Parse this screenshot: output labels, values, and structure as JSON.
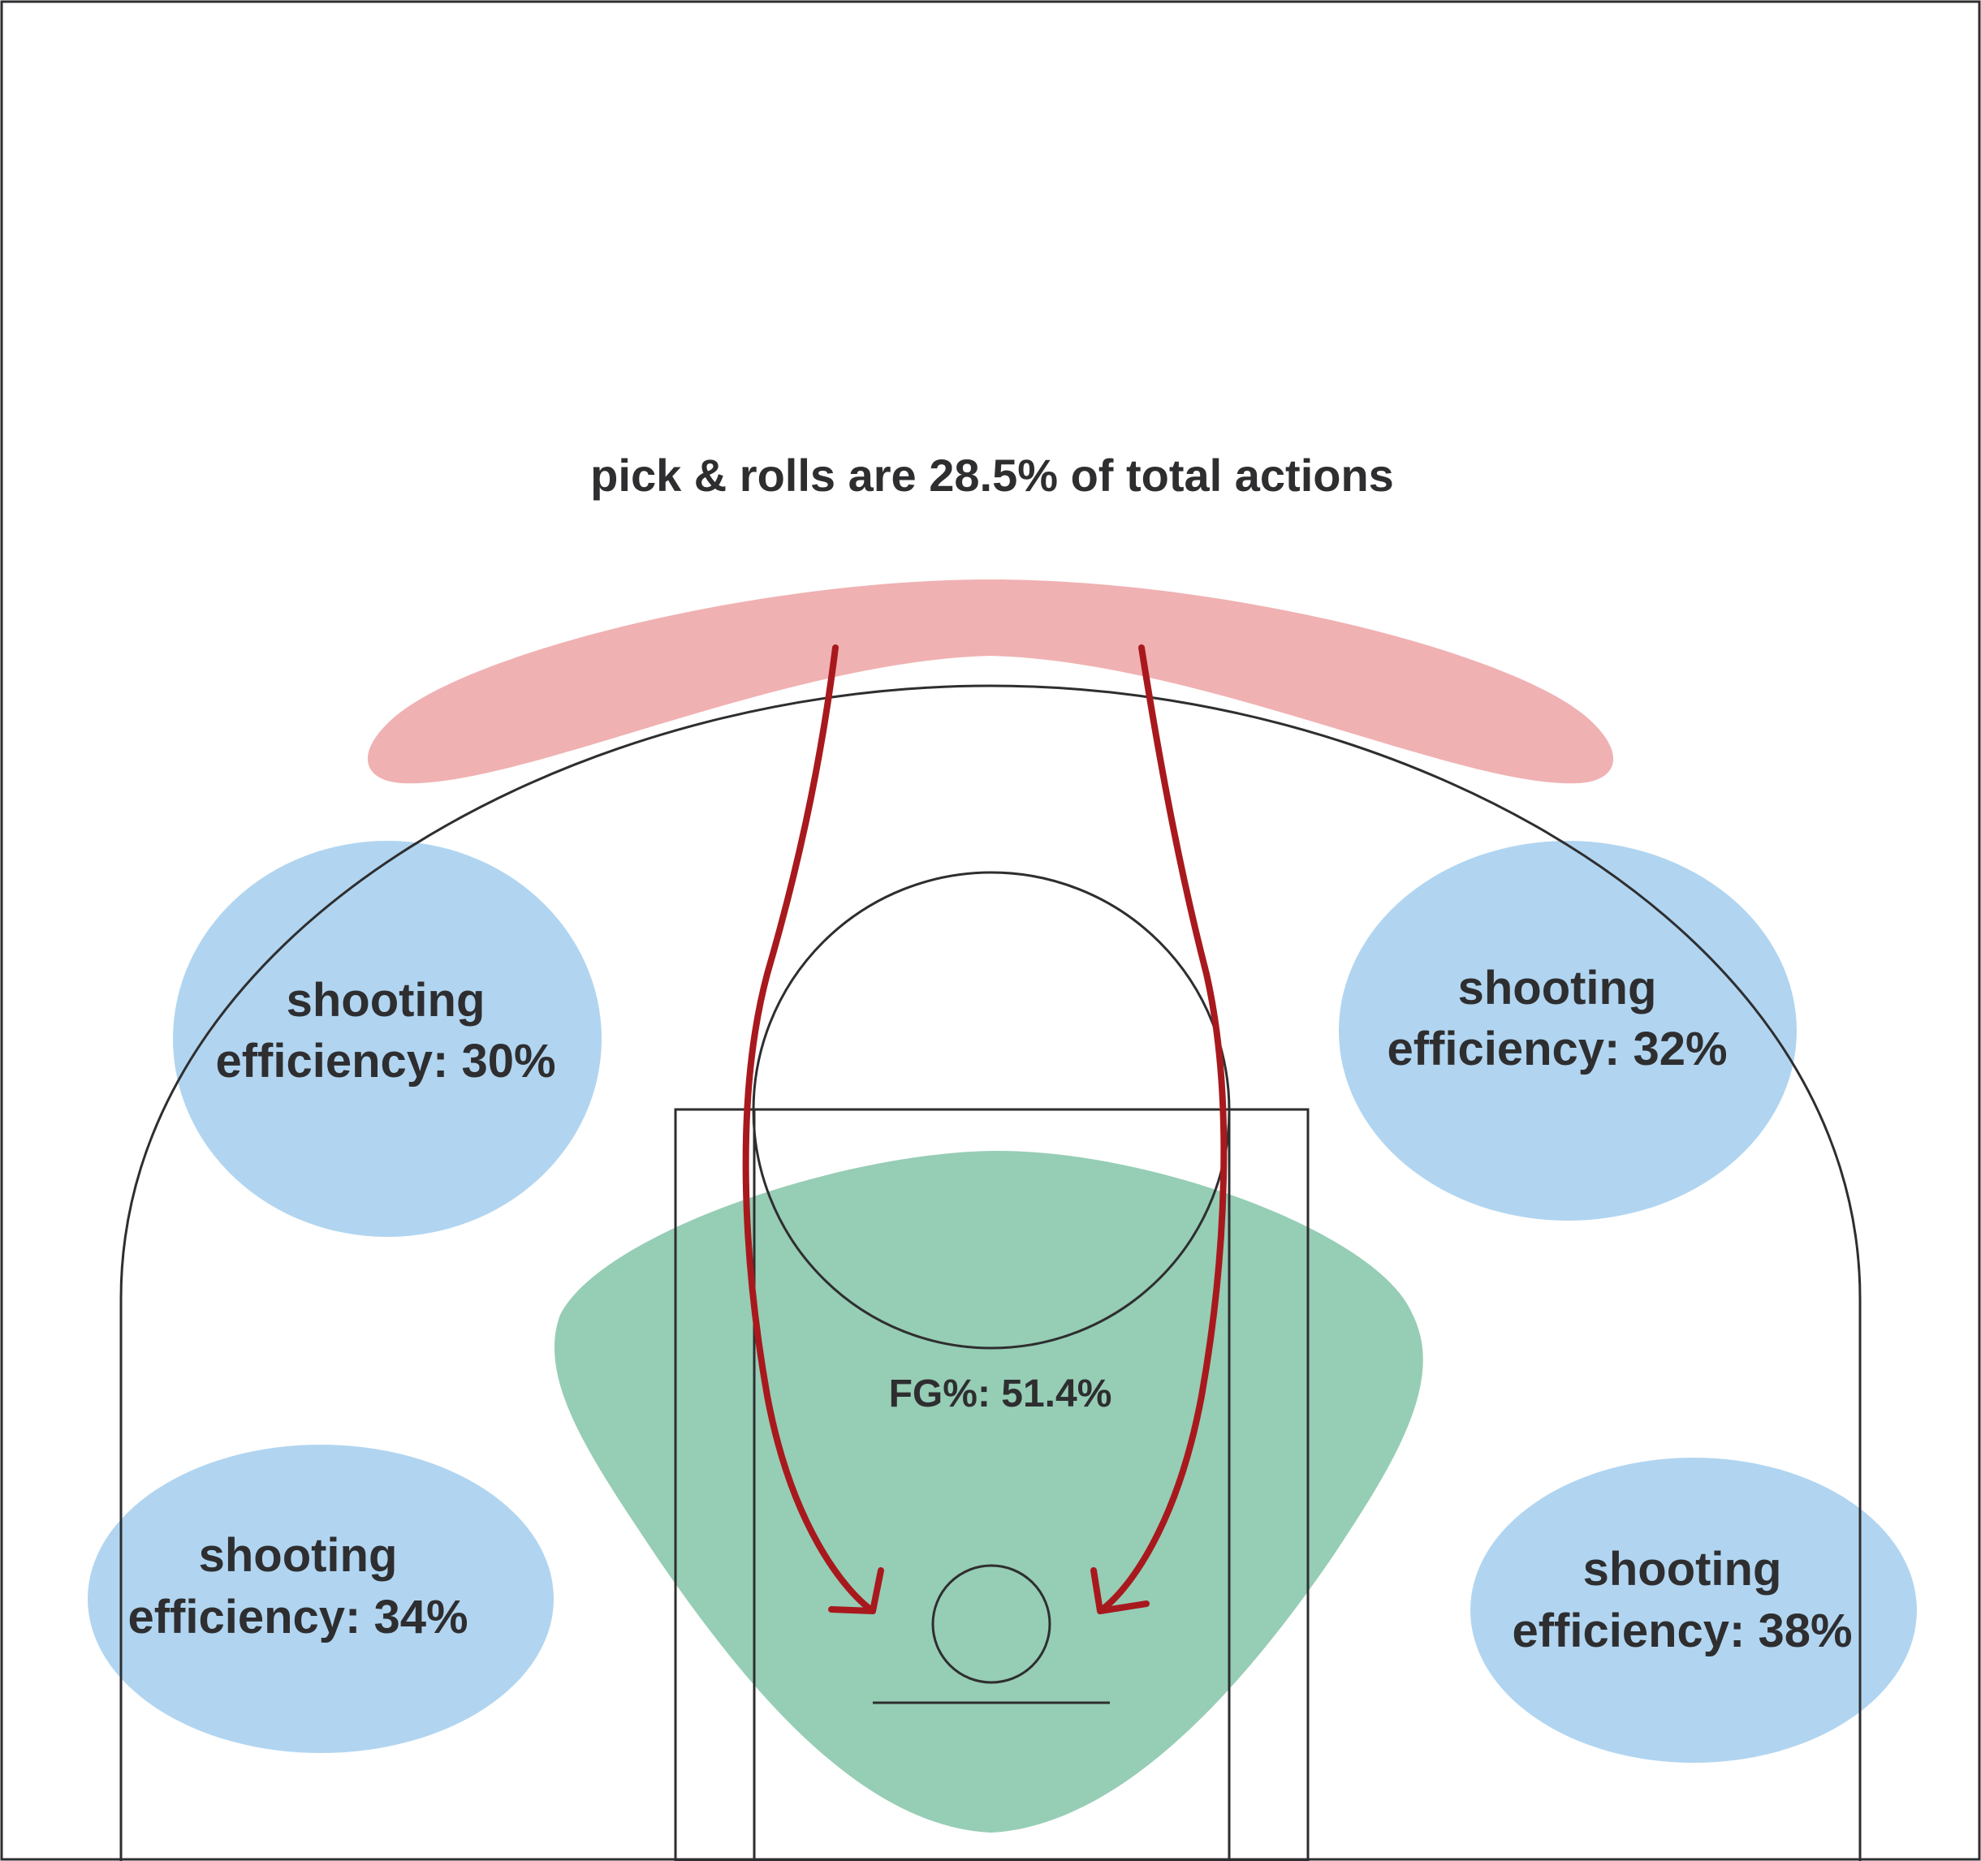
{
  "title": {
    "text": "pick & rolls are 28.5% of total actions"
  },
  "zones": {
    "top_left": {
      "line1": "shooting",
      "line2": "efficiency: 30%"
    },
    "top_right": {
      "line1": "shooting",
      "line2": "efficiency: 32%"
    },
    "bottom_left": {
      "line1": "shooting",
      "line2": "efficiency: 34%"
    },
    "bottom_right": {
      "line1": "shooting",
      "line2": "efficiency: 38%"
    },
    "paint": {
      "label": "FG%: 51.4%"
    }
  },
  "colors": {
    "background": "#ffffff",
    "court_lines": "#2e2e30",
    "pick_and_roll_zone": "#f0b1b2",
    "shooting_zone": "#b1d5f0",
    "paint_zone": "#96cdb5",
    "roll_arrows": "#a8191e"
  }
}
